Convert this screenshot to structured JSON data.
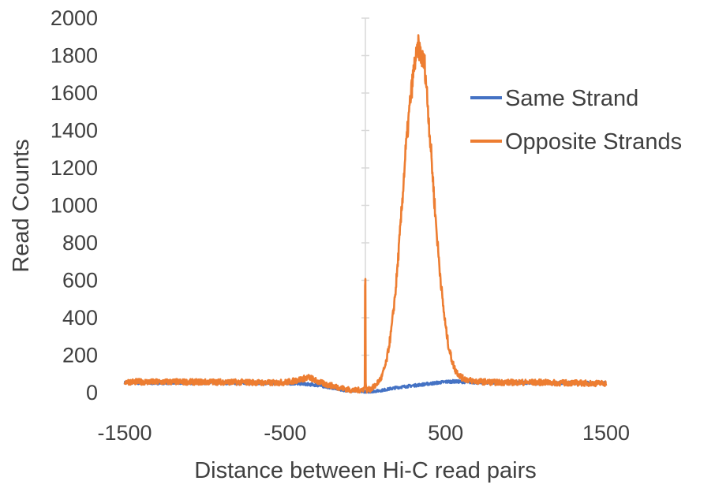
{
  "chart_data": {
    "type": "line",
    "title": "",
    "xlabel": "Distance between Hi-C read pairs",
    "ylabel": "Read Counts",
    "xlim": [
      -1500,
      1500
    ],
    "ylim": [
      0,
      2000
    ],
    "x_ticks": [
      "-1500",
      "-500",
      "500",
      "1500"
    ],
    "x_tick_values": [
      -1500,
      -500,
      500,
      1500
    ],
    "y_ticks": [
      "0",
      "200",
      "400",
      "600",
      "800",
      "1000",
      "1200",
      "1400",
      "1600",
      "1800",
      "2000"
    ],
    "y_tick_values": [
      0,
      200,
      400,
      600,
      800,
      1000,
      1200,
      1400,
      1600,
      1800,
      2000
    ],
    "grid": false,
    "legend_position": "right",
    "series": [
      {
        "name": "Same Strand",
        "color": "#4472C4",
        "x": [
          -1500,
          -1300,
          -1100,
          -900,
          -700,
          -500,
          -400,
          -300,
          -200,
          -150,
          -100,
          -50,
          -20,
          0,
          20,
          50,
          100,
          150,
          200,
          300,
          400,
          500,
          550,
          600,
          700,
          800,
          900,
          1000,
          1100,
          1200,
          1300,
          1400,
          1500
        ],
        "y": [
          52,
          52,
          52,
          52,
          52,
          50,
          48,
          40,
          25,
          15,
          10,
          8,
          6,
          5,
          5,
          7,
          12,
          20,
          28,
          38,
          48,
          58,
          60,
          58,
          55,
          54,
          54,
          52,
          52,
          52,
          52,
          52,
          52
        ]
      },
      {
        "name": "Opposite Strands",
        "color": "#ED7D31",
        "x": [
          -1500,
          -1400,
          -1300,
          -1200,
          -1100,
          -1000,
          -900,
          -800,
          -700,
          -600,
          -500,
          -450,
          -400,
          -350,
          -300,
          -250,
          -200,
          -150,
          -100,
          -60,
          -30,
          -10,
          -5,
          -3,
          -2,
          0,
          2,
          3,
          5,
          10,
          30,
          60,
          100,
          130,
          160,
          190,
          220,
          250,
          280,
          300,
          310,
          320,
          330,
          340,
          350,
          360,
          370,
          380,
          400,
          420,
          440,
          460,
          480,
          500,
          520,
          540,
          560,
          600,
          650,
          700,
          800,
          900,
          1000,
          1100,
          1200,
          1300,
          1400,
          1500
        ],
        "y": [
          58,
          58,
          57,
          58,
          57,
          57,
          57,
          56,
          55,
          52,
          55,
          62,
          72,
          82,
          60,
          45,
          35,
          25,
          15,
          12,
          15,
          20,
          22,
          60,
          600,
          600,
          60,
          24,
          20,
          14,
          18,
          35,
          80,
          160,
          320,
          560,
          900,
          1280,
          1560,
          1710,
          1770,
          1800,
          1850,
          1820,
          1790,
          1770,
          1750,
          1640,
          1400,
          1150,
          900,
          690,
          500,
          350,
          240,
          170,
          120,
          80,
          65,
          60,
          55,
          55,
          55,
          55,
          52,
          52,
          50,
          50
        ]
      }
    ]
  }
}
